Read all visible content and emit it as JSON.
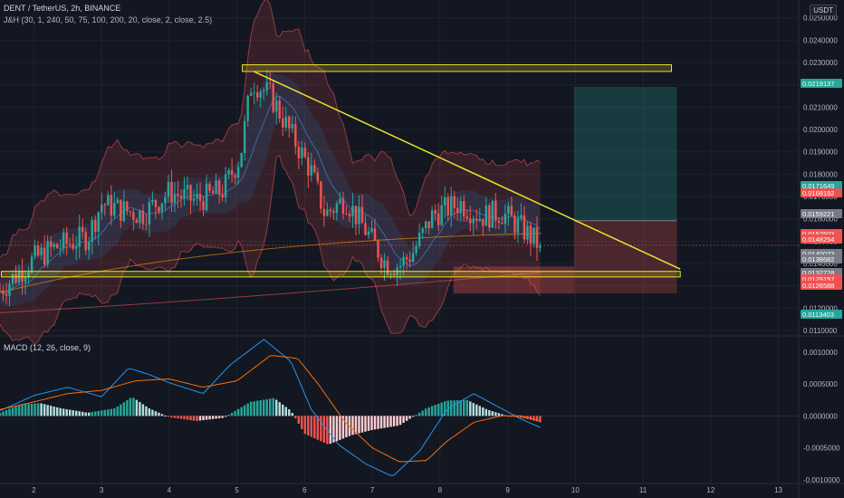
{
  "header": {
    "symbol_line": "DENT / TetherUS, 2h, BINANCE",
    "indicator_line": "J&H (30, 1, 240, 50, 75, 100, 200, 20, close, 2, close, 2.5)",
    "macd_label": "MACD (12, 26, close, 9)",
    "currency_badge": "USDT"
  },
  "colors": {
    "background": "#131722",
    "up": "#26a69a",
    "down": "#ef5350",
    "zone": "#e7e32b",
    "trendline": "#e7e32b",
    "macd_line": "#2196f3",
    "signal_line": "#ff6d00",
    "hist_up_strong": "#26a69a",
    "hist_up_weak": "#b2dfdb",
    "hist_down_strong": "#ef5350",
    "hist_down_weak": "#ffcdd2"
  },
  "chart_data": [
    {
      "type": "candlestick",
      "title": "DENT / TetherUS, 2h, BINANCE",
      "ylim": [
        0.0108,
        0.0258
      ],
      "y_ticks": [
        "0.0110000",
        "0.0120000",
        "0.0130000",
        "0.0140000",
        "0.0150000",
        "0.0160000",
        "0.0170000",
        "0.0180000",
        "0.0190000",
        "0.0200000",
        "0.0210000",
        "0.0220000",
        "0.0230000",
        "0.0240000",
        "0.0250000"
      ],
      "x_ticks": [
        "2",
        "3",
        "4",
        "5",
        "6",
        "7",
        "8",
        "9",
        "10",
        "11",
        "12",
        "13"
      ],
      "x_range": [
        1.5,
        13.3
      ],
      "price_labels": [
        {
          "text": "0.0219137",
          "color": "#26a69a"
        },
        {
          "text": "0.0171649",
          "color": "#26a69a"
        },
        {
          "text": "0.0168192",
          "color": "#ef5350"
        },
        {
          "text": "0.0159221",
          "color": "#787b86"
        },
        {
          "text": "0.0152503",
          "color": "#ef5350"
        },
        {
          "text": "0.0148254",
          "color": "#ef5350"
        },
        {
          "text": "0.0140073",
          "color": "#787b86"
        },
        {
          "text": "0.0138682",
          "color": "#787b86"
        },
        {
          "text": "0.0132728",
          "color": "#787b86"
        },
        {
          "text": "0.0129157",
          "color": "#ef5350"
        },
        {
          "text": "0.0126588",
          "color": "#ef5350"
        },
        {
          "text": "0.0113403",
          "color": "#26a69a"
        }
      ],
      "resistance_zone": [
        0.0226,
        0.0229,
        5.08,
        11.42
      ],
      "support_zone": [
        0.0134,
        0.01365,
        1.52,
        11.55
      ],
      "trendline": [
        [
          5.25,
          0.0226
        ],
        [
          11.55,
          0.01375
        ]
      ],
      "position": {
        "x0": 9.98,
        "x1": 11.5,
        "entry": 0.01592,
        "target": 0.02191,
        "stop": 0.01266,
        "entry2": 0.01387
      },
      "waypoints": [
        [
          1.5,
          0.0128
        ],
        [
          2.0,
          0.0142
        ],
        [
          2.3,
          0.0147
        ],
        [
          2.8,
          0.0152
        ],
        [
          3.0,
          0.0167
        ],
        [
          3.3,
          0.0164
        ],
        [
          3.6,
          0.0162
        ],
        [
          4.0,
          0.0172
        ],
        [
          4.4,
          0.0168
        ],
        [
          4.8,
          0.0173
        ],
        [
          5.05,
          0.0188
        ],
        [
          5.22,
          0.0222
        ],
        [
          5.5,
          0.0215
        ],
        [
          5.8,
          0.0198
        ],
        [
          6.1,
          0.0181
        ],
        [
          6.3,
          0.0162
        ],
        [
          6.6,
          0.0169
        ],
        [
          6.9,
          0.0155
        ],
        [
          7.2,
          0.014
        ],
        [
          7.4,
          0.0139
        ],
        [
          7.6,
          0.0145
        ],
        [
          7.9,
          0.0162
        ],
        [
          8.3,
          0.0167
        ],
        [
          8.6,
          0.0161
        ],
        [
          8.9,
          0.0163
        ],
        [
          9.2,
          0.0156
        ],
        [
          9.48,
          0.0148
        ]
      ]
    },
    {
      "type": "histogram+line",
      "title": "MACD (12, 26, close, 9)",
      "ylim": [
        -0.00106,
        0.00124
      ],
      "y_ticks": [
        "0.0010000",
        "0.0005000",
        "0.0000000",
        "-0.0005000",
        "-0.0010000"
      ],
      "macd_waypoints": [
        [
          1.5,
          8e-05
        ],
        [
          2.0,
          0.00032
        ],
        [
          2.5,
          0.00045
        ],
        [
          3.0,
          0.0003
        ],
        [
          3.4,
          0.00075
        ],
        [
          3.7,
          0.00065
        ],
        [
          4.0,
          0.00052
        ],
        [
          4.5,
          0.00035
        ],
        [
          4.9,
          0.0008
        ],
        [
          5.4,
          0.0012
        ],
        [
          5.8,
          0.00085
        ],
        [
          6.1,
          0.0001
        ],
        [
          6.5,
          -0.00045
        ],
        [
          6.9,
          -0.00075
        ],
        [
          7.3,
          -0.00095
        ],
        [
          7.7,
          -0.00055
        ],
        [
          8.1,
          0.0001
        ],
        [
          8.5,
          0.00035
        ],
        [
          8.9,
          0.00012
        ],
        [
          9.2,
          -5e-05
        ],
        [
          9.48,
          -0.00018
        ]
      ],
      "signal_waypoints": [
        [
          1.5,
          0.0001
        ],
        [
          2.0,
          0.00022
        ],
        [
          2.5,
          0.00035
        ],
        [
          3.0,
          0.0004
        ],
        [
          3.5,
          0.00055
        ],
        [
          4.0,
          0.00058
        ],
        [
          4.5,
          0.00045
        ],
        [
          5.0,
          0.00055
        ],
        [
          5.5,
          0.00095
        ],
        [
          5.9,
          0.0009
        ],
        [
          6.2,
          0.0005
        ],
        [
          6.6,
          -0.0001
        ],
        [
          7.0,
          -0.0005
        ],
        [
          7.4,
          -0.00072
        ],
        [
          7.8,
          -0.0007
        ],
        [
          8.1,
          -0.0004
        ],
        [
          8.5,
          -0.0001
        ],
        [
          8.9,
          0.0
        ],
        [
          9.2,
          0.0
        ],
        [
          9.48,
          -8e-05
        ]
      ],
      "hist_waypoints": [
        [
          1.5,
          5e-05
        ],
        [
          1.8,
          0.00018
        ],
        [
          2.1,
          0.0002
        ],
        [
          2.4,
          0.00012
        ],
        [
          2.8,
          5e-05
        ],
        [
          3.2,
          0.00012
        ],
        [
          3.45,
          0.0003
        ],
        [
          3.7,
          0.00012
        ],
        [
          4.0,
          -2e-05
        ],
        [
          4.4,
          -8e-05
        ],
        [
          4.8,
          -3e-05
        ],
        [
          5.2,
          0.00022
        ],
        [
          5.55,
          0.00028
        ],
        [
          5.8,
          8e-05
        ],
        [
          6.0,
          -0.00028
        ],
        [
          6.35,
          -0.00045
        ],
        [
          6.7,
          -0.0003
        ],
        [
          7.0,
          -0.00022
        ],
        [
          7.4,
          -0.00015
        ],
        [
          7.8,
          0.00012
        ],
        [
          8.1,
          0.00024
        ],
        [
          8.4,
          0.00025
        ],
        [
          8.7,
          0.0001
        ],
        [
          9.0,
          0.0
        ],
        [
          9.3,
          -5e-05
        ],
        [
          9.48,
          -0.0001
        ]
      ]
    }
  ]
}
